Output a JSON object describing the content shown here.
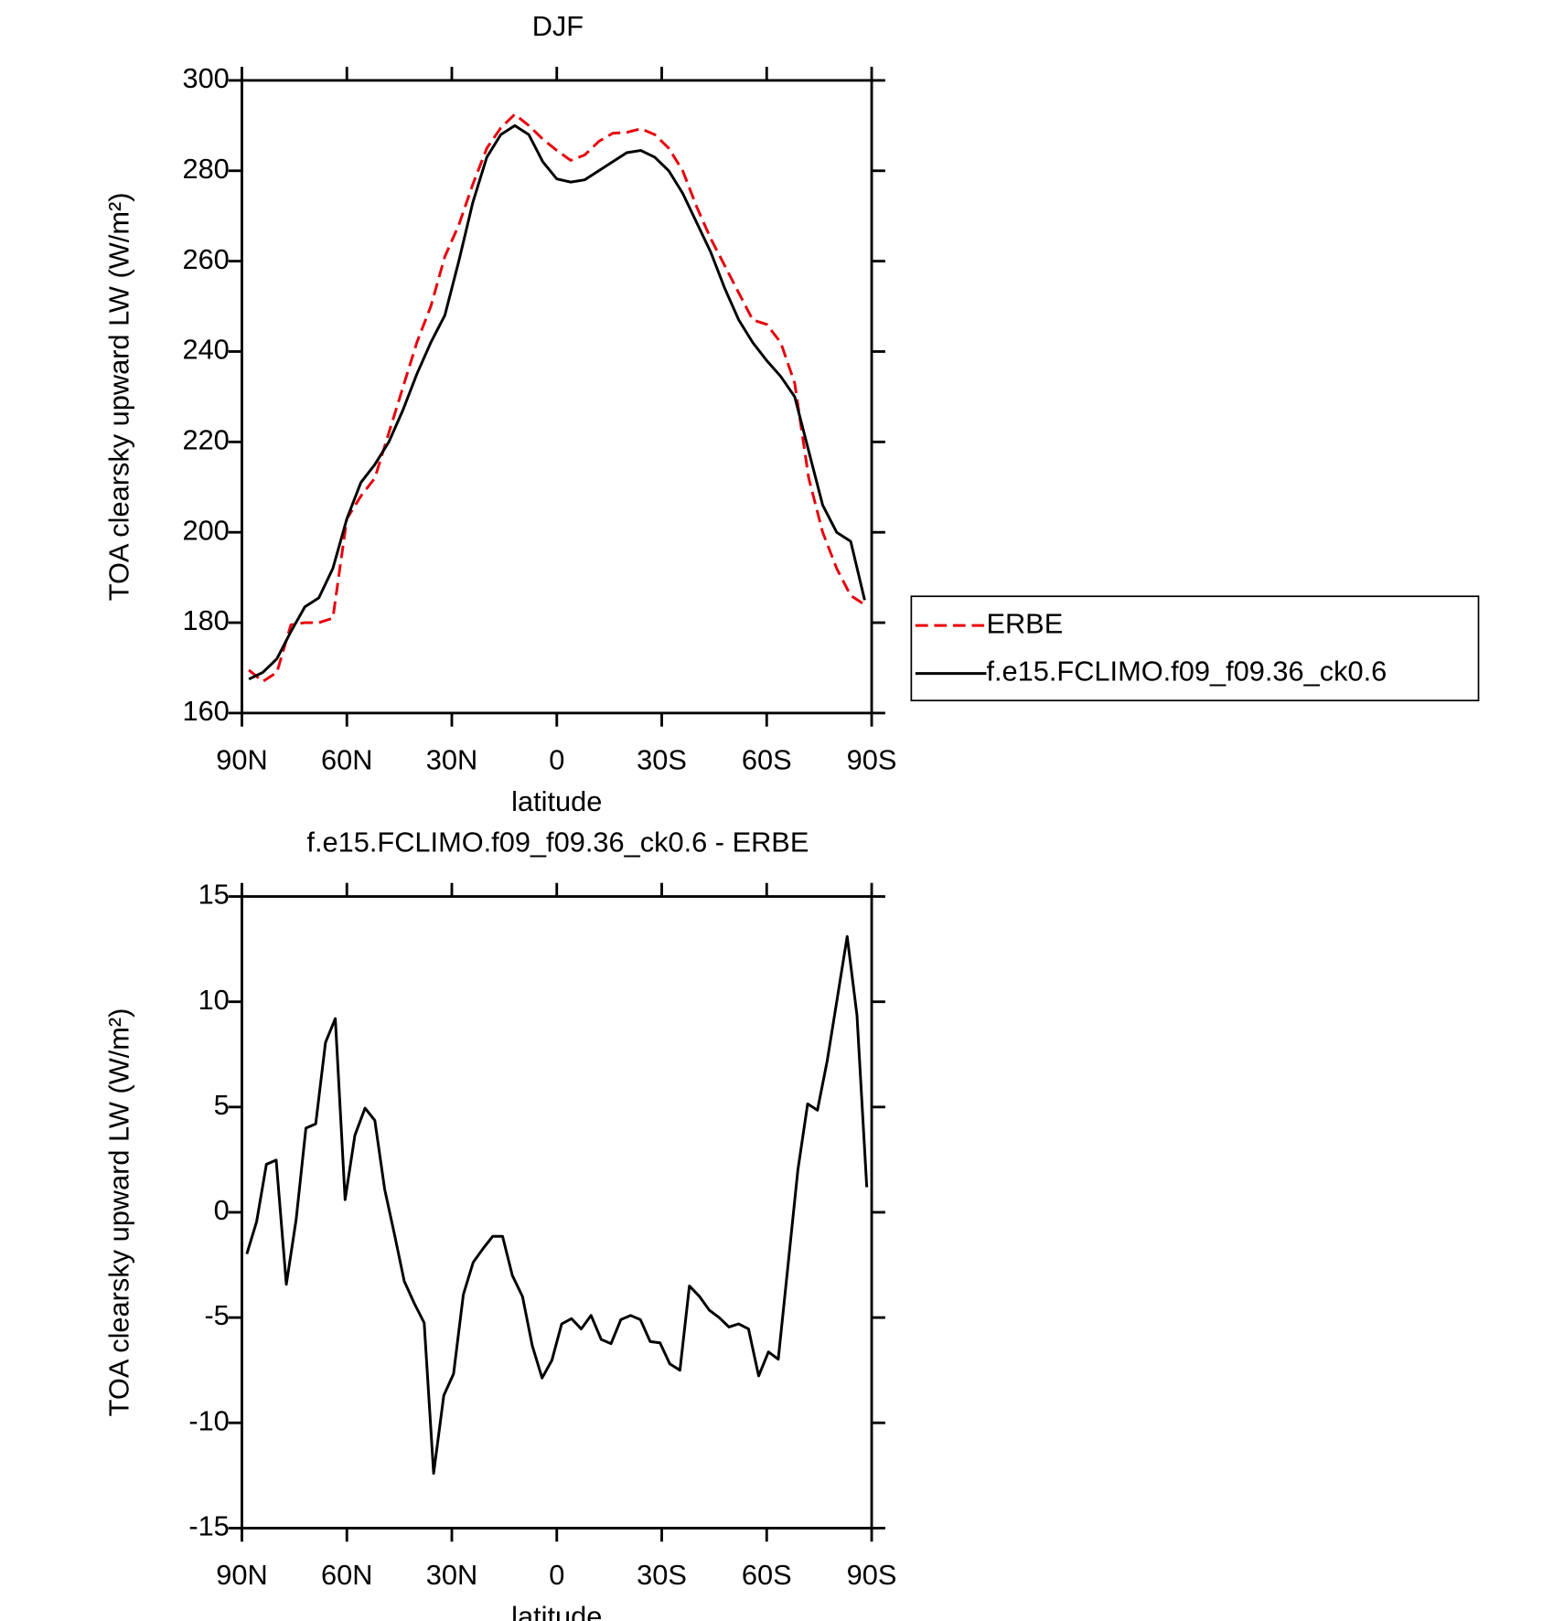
{
  "chart_data": [
    {
      "type": "line",
      "title": "DJF",
      "xlabel": "latitude",
      "ylabel": "TOA clearsky upward LW (W/m²)",
      "x": [
        88,
        84,
        80,
        76,
        72,
        68,
        64,
        60,
        56,
        52,
        48,
        44,
        40,
        36,
        32,
        28,
        24,
        20,
        16,
        12,
        8,
        4,
        0,
        -4,
        -8,
        -12,
        -16,
        -20,
        -24,
        -28,
        -32,
        -36,
        -40,
        -44,
        -48,
        -52,
        -56,
        -60,
        -64,
        -68,
        -72,
        -76,
        -80,
        -84,
        -88
      ],
      "series": [
        {
          "name": "ERBE",
          "color": "#e8000b",
          "linestyle": "dashed",
          "values": [
            169.5,
            167,
            169,
            179.5,
            180,
            180,
            181,
            203,
            208,
            212,
            222,
            232,
            242,
            250,
            261,
            268,
            277,
            285,
            289.5,
            292.5,
            290,
            287,
            284.5,
            282.3,
            283.5,
            286.5,
            288.3,
            288.5,
            289.3,
            288,
            285,
            280,
            272,
            265,
            259,
            253,
            247,
            246,
            242,
            233,
            212,
            200,
            192,
            186,
            184
          ]
        },
        {
          "name": "f.e15.FCLIMO.f09_f09.36_ck0.6",
          "color": "#000000",
          "linestyle": "solid",
          "values": [
            167.5,
            169,
            172,
            178,
            183.5,
            185.5,
            192,
            203,
            211,
            215,
            220,
            227,
            235,
            242,
            248,
            260,
            273,
            283,
            288,
            290,
            288,
            282,
            278.2,
            277.5,
            278,
            280,
            282,
            284,
            284.5,
            283,
            280,
            275,
            268.5,
            262,
            254,
            247,
            242,
            238,
            234.5,
            230,
            218,
            206,
            200,
            198,
            185
          ]
        }
      ],
      "xlim": [
        90,
        -90
      ],
      "xticks": [
        {
          "value": 90,
          "label": "90N"
        },
        {
          "value": 60,
          "label": "60N"
        },
        {
          "value": 30,
          "label": "30N"
        },
        0,
        {
          "value": -30,
          "label": "30S"
        },
        {
          "value": -60,
          "label": "60S"
        },
        {
          "value": -90,
          "label": "90S"
        }
      ],
      "ylim": [
        160,
        300
      ],
      "yticks": [
        160,
        180,
        200,
        220,
        240,
        260,
        280,
        300
      ],
      "legend": "right"
    },
    {
      "type": "line",
      "title": "f.e15.FCLIMO.f09_f09.36_ck0.6 - ERBE",
      "xlabel": "latitude",
      "ylabel": "TOA clearsky upward LW (W/m²)",
      "x": [
        88.6,
        85.8,
        83.0,
        80.2,
        77.3,
        74.5,
        71.7,
        68.9,
        66.1,
        63.3,
        60.5,
        57.7,
        54.8,
        52.0,
        49.2,
        46.4,
        43.6,
        40.8,
        37.9,
        35.2,
        32.3,
        29.5,
        26.7,
        23.9,
        21.1,
        18.3,
        15.5,
        12.7,
        9.8,
        7.0,
        4.2,
        1.4,
        -1.4,
        -4.2,
        -7.0,
        -9.8,
        -12.7,
        -15.5,
        -18.3,
        -21.1,
        -23.9,
        -26.7,
        -29.5,
        -32.3,
        -35.2,
        -37.9,
        -40.8,
        -43.6,
        -46.4,
        -49.2,
        -52.0,
        -54.8,
        -57.7,
        -60.5,
        -63.3,
        -66.1,
        -68.9,
        -71.7,
        -74.5,
        -77.3,
        -80.2,
        -83.0,
        -85.8,
        -88.6
      ],
      "values": [
        -1.98,
        -0.45,
        2.28,
        2.48,
        -3.42,
        -0.35,
        4.0,
        4.2,
        8.07,
        9.2,
        0.6,
        3.66,
        4.95,
        4.36,
        1.1,
        -1.04,
        -3.27,
        -4.3,
        -5.25,
        -12.4,
        -8.7,
        -7.67,
        -3.9,
        -2.38,
        -1.73,
        -1.14,
        -1.14,
        -3.0,
        -4.0,
        -6.34,
        -7.87,
        -7.03,
        -5.3,
        -5.05,
        -5.54,
        -4.9,
        -6.04,
        -6.24,
        -5.1,
        -4.9,
        -5.1,
        -6.14,
        -6.2,
        -7.2,
        -7.5,
        -3.5,
        -4.0,
        -4.65,
        -5.0,
        -5.45,
        -5.3,
        -5.54,
        -7.77,
        -6.63,
        -6.98,
        -2.5,
        2.0,
        5.15,
        4.85,
        7.2,
        10.2,
        13.1,
        9.36,
        1.19
      ],
      "color": "#000000",
      "xlim": [
        90,
        -90
      ],
      "xticks": [
        {
          "value": 90,
          "label": "90N"
        },
        {
          "value": 60,
          "label": "60N"
        },
        {
          "value": 30,
          "label": "30N"
        },
        0,
        {
          "value": -30,
          "label": "30S"
        },
        {
          "value": -60,
          "label": "60S"
        },
        {
          "value": -90,
          "label": "90S"
        }
      ],
      "ylim": [
        -15,
        15
      ],
      "yticks": [
        -15,
        -10,
        -5,
        0,
        5,
        10,
        15
      ]
    }
  ]
}
